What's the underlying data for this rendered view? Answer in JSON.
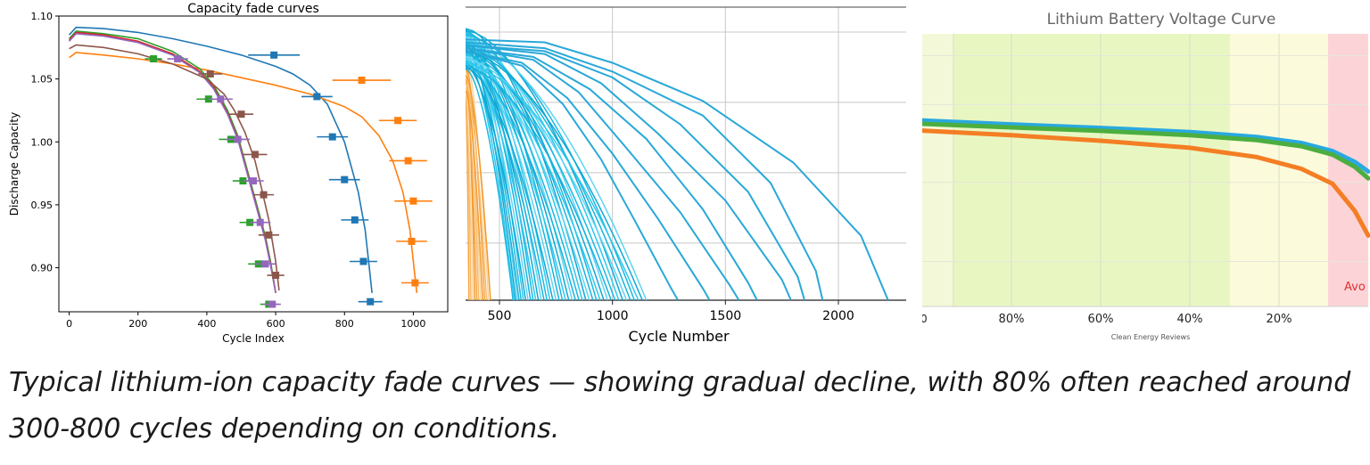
{
  "charts": {
    "left": {
      "type": "line",
      "title": "Capacity fade curves",
      "xlabel": "Cycle Index",
      "ylabel": "Discharge Capacity",
      "xlim": [
        -30,
        1100
      ],
      "ylim": [
        0.865,
        1.1
      ],
      "x_ticks": [
        "0",
        "200",
        "400",
        "600",
        "800",
        "1000"
      ],
      "x_tick_values": [
        0,
        200,
        400,
        600,
        800,
        1000
      ],
      "y_ticks": [
        "1.10",
        "1.05",
        "1.00",
        "0.95",
        "0.90"
      ],
      "y_tick_values": [
        1.1,
        1.05,
        1.0,
        0.95,
        0.9
      ],
      "series": [
        {
          "color": "#1f77b4",
          "x": [
            0,
            20,
            100,
            200,
            300,
            400,
            500,
            600,
            650,
            700,
            750,
            800,
            840,
            860,
            870,
            880
          ],
          "y": [
            1.085,
            1.091,
            1.09,
            1.087,
            1.082,
            1.076,
            1.069,
            1.06,
            1.054,
            1.045,
            1.03,
            1.0,
            0.96,
            0.93,
            0.905,
            0.88
          ]
        },
        {
          "color": "#ff7f0e",
          "x": [
            0,
            20,
            100,
            200,
            300,
            400,
            500,
            600,
            700,
            800,
            850,
            900,
            940,
            970,
            990,
            1000,
            1010
          ],
          "y": [
            1.067,
            1.071,
            1.069,
            1.066,
            1.062,
            1.057,
            1.051,
            1.045,
            1.038,
            1.028,
            1.02,
            1.005,
            0.985,
            0.96,
            0.93,
            0.905,
            0.88
          ]
        },
        {
          "color": "#2ca02c",
          "x": [
            0,
            20,
            100,
            200,
            300,
            380,
            420,
            460,
            490,
            510,
            530,
            550,
            570,
            585,
            600
          ],
          "y": [
            1.082,
            1.088,
            1.086,
            1.082,
            1.072,
            1.058,
            1.045,
            1.025,
            1.005,
            0.985,
            0.965,
            0.945,
            0.925,
            0.905,
            0.88
          ]
        },
        {
          "color": "#d62728",
          "x": [
            0,
            20,
            100,
            200,
            300,
            380,
            420,
            460,
            490,
            510,
            530,
            550,
            570,
            585,
            600
          ],
          "y": [
            1.081,
            1.087,
            1.085,
            1.08,
            1.07,
            1.056,
            1.043,
            1.023,
            1.003,
            0.983,
            0.963,
            0.943,
            0.923,
            0.903,
            0.88
          ]
        },
        {
          "color": "#9467bd",
          "x": [
            0,
            20,
            100,
            200,
            300,
            380,
            420,
            460,
            490,
            510,
            530,
            550,
            570,
            585,
            600
          ],
          "y": [
            1.08,
            1.086,
            1.084,
            1.079,
            1.069,
            1.055,
            1.042,
            1.022,
            1.002,
            0.982,
            0.962,
            0.942,
            0.922,
            0.902,
            0.88
          ]
        },
        {
          "color": "#8c564b",
          "x": [
            0,
            20,
            100,
            200,
            300,
            400,
            450,
            480,
            510,
            540,
            560,
            580,
            600,
            610
          ],
          "y": [
            1.074,
            1.077,
            1.075,
            1.07,
            1.062,
            1.05,
            1.038,
            1.025,
            1.008,
            0.985,
            0.962,
            0.938,
            0.905,
            0.882
          ]
        }
      ],
      "markers": [
        {
          "color": "#1f77b4",
          "x": 595,
          "y": 1.069,
          "xerr": 75
        },
        {
          "color": "#1f77b4",
          "x": 720,
          "y": 1.036,
          "xerr": 45
        },
        {
          "color": "#1f77b4",
          "x": 765,
          "y": 1.004,
          "xerr": 45
        },
        {
          "color": "#1f77b4",
          "x": 800,
          "y": 0.97,
          "xerr": 45
        },
        {
          "color": "#1f77b4",
          "x": 830,
          "y": 0.938,
          "xerr": 40
        },
        {
          "color": "#1f77b4",
          "x": 855,
          "y": 0.905,
          "xerr": 40
        },
        {
          "color": "#1f77b4",
          "x": 875,
          "y": 0.873,
          "xerr": 35
        },
        {
          "color": "#ff7f0e",
          "x": 850,
          "y": 1.049,
          "xerr": 85
        },
        {
          "color": "#ff7f0e",
          "x": 955,
          "y": 1.017,
          "xerr": 55
        },
        {
          "color": "#ff7f0e",
          "x": 985,
          "y": 0.985,
          "xerr": 55
        },
        {
          "color": "#ff7f0e",
          "x": 1000,
          "y": 0.953,
          "xerr": 55
        },
        {
          "color": "#ff7f0e",
          "x": 995,
          "y": 0.921,
          "xerr": 45
        },
        {
          "color": "#ff7f0e",
          "x": 1005,
          "y": 0.888,
          "xerr": 40
        },
        {
          "color": "#2ca02c",
          "x": 245,
          "y": 1.066,
          "xerr": 25
        },
        {
          "color": "#2ca02c",
          "x": 405,
          "y": 1.034,
          "xerr": 35
        },
        {
          "color": "#2ca02c",
          "x": 470,
          "y": 1.002,
          "xerr": 35
        },
        {
          "color": "#2ca02c",
          "x": 505,
          "y": 0.969,
          "xerr": 30
        },
        {
          "color": "#2ca02c",
          "x": 525,
          "y": 0.936,
          "xerr": 30
        },
        {
          "color": "#2ca02c",
          "x": 550,
          "y": 0.903,
          "xerr": 30
        },
        {
          "color": "#2ca02c",
          "x": 580,
          "y": 0.871,
          "xerr": 25
        },
        {
          "color": "#9467bd",
          "x": 315,
          "y": 1.066,
          "xerr": 30
        },
        {
          "color": "#9467bd",
          "x": 440,
          "y": 1.034,
          "xerr": 35
        },
        {
          "color": "#9467bd",
          "x": 490,
          "y": 1.002,
          "xerr": 35
        },
        {
          "color": "#9467bd",
          "x": 535,
          "y": 0.969,
          "xerr": 30
        },
        {
          "color": "#9467bd",
          "x": 555,
          "y": 0.936,
          "xerr": 30
        },
        {
          "color": "#9467bd",
          "x": 570,
          "y": 0.903,
          "xerr": 30
        },
        {
          "color": "#9467bd",
          "x": 590,
          "y": 0.871,
          "xerr": 25
        },
        {
          "color": "#8c564b",
          "x": 410,
          "y": 1.054,
          "xerr": 35
        },
        {
          "color": "#8c564b",
          "x": 500,
          "y": 1.022,
          "xerr": 35
        },
        {
          "color": "#8c564b",
          "x": 540,
          "y": 0.99,
          "xerr": 35
        },
        {
          "color": "#8c564b",
          "x": 565,
          "y": 0.958,
          "xerr": 30
        },
        {
          "color": "#8c564b",
          "x": 580,
          "y": 0.926,
          "xerr": 30
        },
        {
          "color": "#8c564b",
          "x": 600,
          "y": 0.894,
          "xerr": 25
        }
      ]
    },
    "middle": {
      "type": "line",
      "xlabel": "Cycle Number",
      "xlim": [
        350,
        2300
      ],
      "ylim": [
        0,
        1
      ],
      "x_ticks": [
        "500",
        "1000",
        "1500",
        "2000"
      ],
      "x_tick_values": [
        500,
        1000,
        1500,
        2000
      ],
      "grid_x_values": [
        500,
        1000,
        1500,
        2000
      ],
      "grid_y_values": [
        0.195,
        0.435,
        0.675,
        0.915
      ],
      "dense_group": {
        "count": 44,
        "colors": [
          "#1ab8e0",
          "#2ec8ee",
          "#0fa8d4",
          "#5fd4f2",
          "#19b2dc"
        ],
        "end_min": 560,
        "end_max": 1150,
        "start_min": 0.79,
        "start_max": 0.93
      },
      "orange_group": {
        "count": 12,
        "colors": [
          "#f5a542",
          "#f7b868",
          "#fbd49a",
          "#f29a2e"
        ],
        "end_min": 365,
        "end_max": 460,
        "start_min": 0.7,
        "start_max": 0.86
      },
      "series": [
        {
          "color": "#29a8d8",
          "x": [
            350,
            700,
            1000,
            1400,
            1800,
            2100,
            2220
          ],
          "y": [
            0.89,
            0.88,
            0.81,
            0.68,
            0.47,
            0.22,
            0.0
          ]
        },
        {
          "color": "#29a8d8",
          "x": [
            350,
            700,
            1000,
            1400,
            1700,
            1900,
            1930
          ],
          "y": [
            0.88,
            0.86,
            0.78,
            0.63,
            0.4,
            0.1,
            0.0
          ]
        },
        {
          "color": "#29a8d8",
          "x": [
            350,
            700,
            1000,
            1300,
            1600,
            1820,
            1850
          ],
          "y": [
            0.87,
            0.85,
            0.76,
            0.6,
            0.37,
            0.08,
            0.0
          ]
        },
        {
          "color": "#29a8d8",
          "x": [
            350,
            700,
            950,
            1200,
            1500,
            1750,
            1790
          ],
          "y": [
            0.87,
            0.84,
            0.74,
            0.57,
            0.34,
            0.07,
            0.0
          ]
        },
        {
          "color": "#29a8d8",
          "x": [
            350,
            650,
            900,
            1150,
            1400,
            1600,
            1640
          ],
          "y": [
            0.86,
            0.83,
            0.72,
            0.55,
            0.31,
            0.06,
            0.0
          ]
        },
        {
          "color": "#29a8d8",
          "x": [
            350,
            650,
            850,
            1050,
            1300,
            1520,
            1560
          ],
          "y": [
            0.86,
            0.82,
            0.71,
            0.53,
            0.3,
            0.05,
            0.0
          ]
        },
        {
          "color": "#29a8d8",
          "x": [
            350,
            600,
            800,
            1000,
            1200,
            1400,
            1430
          ],
          "y": [
            0.85,
            0.81,
            0.69,
            0.5,
            0.28,
            0.04,
            0.0
          ]
        },
        {
          "color": "#29a8d8",
          "x": [
            350,
            600,
            780,
            950,
            1100,
            1260,
            1290
          ],
          "y": [
            0.85,
            0.8,
            0.67,
            0.48,
            0.27,
            0.04,
            0.0
          ]
        }
      ]
    },
    "right": {
      "type": "line",
      "title": "Lithium Battery Voltage Curve",
      "footer": "Clean Energy Reviews",
      "zone_label": "Avo",
      "x_ticks": [
        "80%",
        "60%",
        "40%",
        "20%"
      ],
      "x_tick_values": [
        80,
        60,
        40,
        20
      ],
      "x_edge_label": "0",
      "x_edge_value": 100,
      "xlim": [
        100,
        0
      ],
      "ylim": [
        0,
        1
      ],
      "zones": [
        {
          "from": 100,
          "to": 93,
          "color": "#f3f9d8"
        },
        {
          "from": 93,
          "to": 31,
          "color": "#e8f7c2"
        },
        {
          "from": 31,
          "to": 9,
          "color": "#fbfbdc"
        },
        {
          "from": 9,
          "to": 0,
          "color": "#fcd4d8"
        }
      ],
      "grid_x_values": [
        93,
        80,
        60,
        40,
        20
      ],
      "grid_y_values": [
        0.165,
        0.455,
        0.74,
        0.92
      ],
      "series": [
        {
          "color": "#29a9e0",
          "x": [
            100,
            80,
            60,
            40,
            25,
            15,
            8,
            3,
            0
          ],
          "y": [
            0.682,
            0.668,
            0.655,
            0.64,
            0.622,
            0.6,
            0.57,
            0.53,
            0.495
          ]
        },
        {
          "color": "#4cae3f",
          "x": [
            100,
            80,
            60,
            40,
            25,
            15,
            8,
            3,
            0
          ],
          "y": [
            0.67,
            0.657,
            0.644,
            0.628,
            0.61,
            0.588,
            0.557,
            0.512,
            0.47
          ]
        },
        {
          "color": "#f47e24",
          "x": [
            100,
            80,
            60,
            40,
            25,
            15,
            8,
            3,
            0
          ],
          "y": [
            0.645,
            0.628,
            0.608,
            0.582,
            0.548,
            0.505,
            0.45,
            0.35,
            0.26
          ]
        }
      ]
    }
  },
  "caption": "Typical lithium-ion capacity fade curves — showing gradual decline, with 80% often reached around 300-800 cycles depending on conditions."
}
